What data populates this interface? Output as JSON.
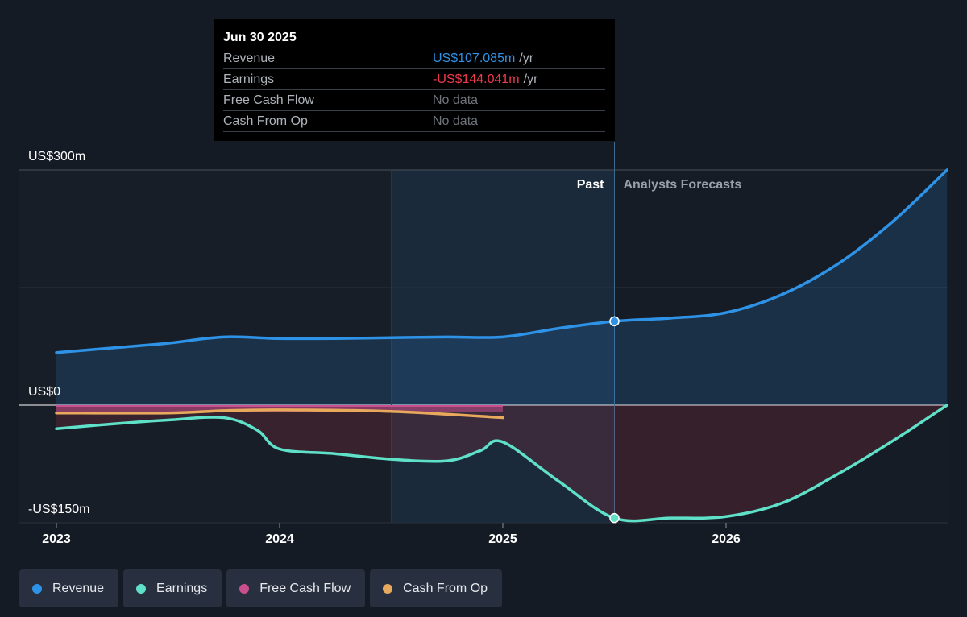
{
  "tooltip": {
    "date": "Jun 30 2025",
    "rows": [
      {
        "label": "Revenue",
        "value": "US$107.085m",
        "unit": "/yr",
        "color": "#2e93e6"
      },
      {
        "label": "Earnings",
        "value": "-US$144.041m",
        "unit": "/yr",
        "color": "#f0394d"
      },
      {
        "label": "Free Cash Flow",
        "value": "No data",
        "unit": ""
      },
      {
        "label": "Cash From Op",
        "value": "No data",
        "unit": ""
      }
    ]
  },
  "legend": [
    {
      "label": "Revenue",
      "color": "#2e93e6"
    },
    {
      "label": "Earnings",
      "color": "#5fe0c8"
    },
    {
      "label": "Free Cash Flow",
      "color": "#c94f8e"
    },
    {
      "label": "Cash From Op",
      "color": "#e8a95c"
    }
  ],
  "chart_data": {
    "type": "line",
    "y_tick_labels": [
      {
        "value": 300,
        "label": "US$300m"
      },
      {
        "value": 0,
        "label": "US$0"
      },
      {
        "value": -150,
        "label": "-US$150m"
      }
    ],
    "ylim": [
      -150,
      300
    ],
    "xlim": [
      2023.0,
      2026.99
    ],
    "x_ticks": [
      2023,
      2024,
      2025,
      2026
    ],
    "x_tick_labels": [
      "2023",
      "2024",
      "2025",
      "2026"
    ],
    "past_label": "Past",
    "forecast_label": "Analysts Forecasts",
    "past_end_x": 2025.5,
    "highlight_start_x": 2024.5,
    "grid": true,
    "series": [
      {
        "name": "Revenue",
        "color": "#2e93e6",
        "x": [
          2023.0,
          2023.25,
          2023.5,
          2023.75,
          2024.0,
          2024.25,
          2024.5,
          2024.75,
          2025.0,
          2025.25,
          2025.5,
          2025.75,
          2026.0,
          2026.25,
          2026.5,
          2026.75,
          2026.99
        ],
        "y": [
          67,
          73,
          79,
          87,
          85,
          85,
          86,
          87,
          87,
          98,
          107,
          111,
          118,
          141,
          180,
          235,
          300
        ],
        "marker_x": 2025.5,
        "marker_y": 107
      },
      {
        "name": "Earnings",
        "color": "#5fe0c8",
        "x": [
          2023.0,
          2023.25,
          2023.5,
          2023.75,
          2023.9,
          2024.0,
          2024.25,
          2024.5,
          2024.75,
          2024.9,
          2025.0,
          2025.25,
          2025.5,
          2025.75,
          2026.0,
          2026.25,
          2026.5,
          2026.75,
          2026.99
        ],
        "y": [
          -30,
          -24,
          -19,
          -16,
          -32,
          -56,
          -62,
          -69,
          -71,
          -58,
          -47,
          -97,
          -144,
          -144,
          -142,
          -125,
          -88,
          -45,
          0
        ],
        "marker_x": 2025.5,
        "marker_y": -144
      },
      {
        "name": "Free Cash Flow",
        "color": "#c94f8e",
        "x": [
          2023.0,
          2023.5,
          2024.0,
          2024.5,
          2025.0
        ],
        "y": [
          -1,
          -1,
          -1,
          -1,
          -1
        ]
      },
      {
        "name": "Cash From Op",
        "color": "#e8a95c",
        "x": [
          2023.0,
          2023.5,
          2023.75,
          2024.0,
          2024.5,
          2025.0
        ],
        "y": [
          -10,
          -10,
          -7,
          -6,
          -8,
          -16
        ]
      }
    ]
  }
}
